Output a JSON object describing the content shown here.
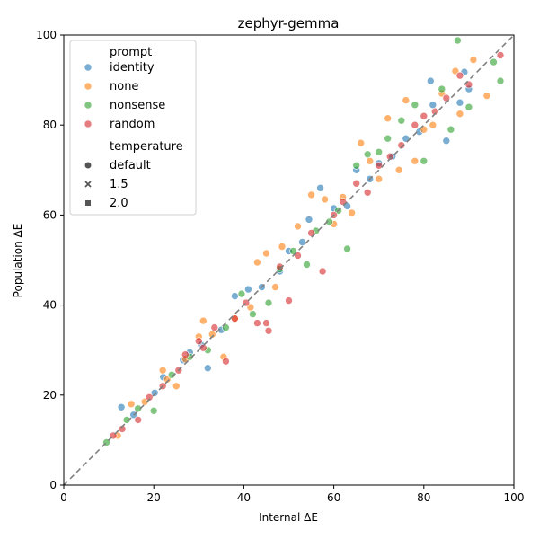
{
  "chart_data": {
    "type": "scatter",
    "title": "zephyr-gemma",
    "xlabel": "Internal ΔE",
    "ylabel": "Population ΔE",
    "xlim": [
      0,
      100
    ],
    "ylim": [
      0,
      100
    ],
    "xticks": [
      0,
      20,
      40,
      60,
      80,
      100
    ],
    "yticks": [
      0,
      20,
      40,
      60,
      80,
      100
    ],
    "grid": false,
    "reference_line": {
      "style": "dashed",
      "color": "#808080",
      "from": [
        0,
        0
      ],
      "to": [
        100,
        100
      ]
    },
    "legend": {
      "placement": "top-left",
      "hue_title": "prompt",
      "hue_entries": [
        {
          "label": "identity",
          "color": "#1f77b4"
        },
        {
          "label": "none",
          "color": "#ff7f0e"
        },
        {
          "label": "nonsense",
          "color": "#2ca02c"
        },
        {
          "label": "random",
          "color": "#d62728"
        }
      ],
      "style_title": "temperature",
      "style_entries": [
        {
          "label": "default",
          "marker": "circle"
        },
        {
          "label": "1.5",
          "marker": "x"
        },
        {
          "label": "2.0",
          "marker": "square"
        }
      ]
    },
    "series": [
      {
        "name": "identity",
        "color": "#1f77b4",
        "points": [
          [
            12.8,
            17.3
          ],
          [
            15.5,
            15.6
          ],
          [
            20.2,
            20.5
          ],
          [
            22.1,
            24.0
          ],
          [
            26.5,
            27.8
          ],
          [
            28.0,
            29.5
          ],
          [
            30.5,
            31.2
          ],
          [
            32.0,
            26.0
          ],
          [
            35.0,
            34.5
          ],
          [
            38.0,
            42.0
          ],
          [
            41.0,
            43.5
          ],
          [
            44.0,
            44.0
          ],
          [
            48.0,
            47.5
          ],
          [
            50.0,
            52.0
          ],
          [
            53.0,
            54.0
          ],
          [
            54.5,
            59.0
          ],
          [
            57.0,
            66.0
          ],
          [
            60.0,
            61.5
          ],
          [
            63.0,
            62.0
          ],
          [
            65.0,
            70.0
          ],
          [
            68.0,
            68.0
          ],
          [
            70.0,
            71.5
          ],
          [
            73.0,
            73.0
          ],
          [
            76.0,
            77.0
          ],
          [
            79.0,
            78.5
          ],
          [
            81.5,
            89.8
          ],
          [
            82.0,
            84.5
          ],
          [
            85.0,
            76.5
          ],
          [
            88.0,
            85.0
          ],
          [
            89.0,
            91.8
          ],
          [
            90.0,
            88.0
          ]
        ]
      },
      {
        "name": "none",
        "color": "#ff7f0e",
        "points": [
          [
            12.0,
            11.0
          ],
          [
            15.0,
            18.0
          ],
          [
            18.0,
            18.5
          ],
          [
            22.0,
            25.5
          ],
          [
            23.0,
            23.5
          ],
          [
            25.0,
            22.0
          ],
          [
            27.0,
            28.0
          ],
          [
            30.0,
            33.0
          ],
          [
            31.0,
            36.5
          ],
          [
            33.0,
            33.5
          ],
          [
            35.5,
            28.5
          ],
          [
            38.0,
            37.0
          ],
          [
            41.5,
            39.5
          ],
          [
            43.0,
            49.5
          ],
          [
            45.0,
            51.5
          ],
          [
            47.0,
            44.0
          ],
          [
            48.5,
            53.0
          ],
          [
            52.0,
            57.5
          ],
          [
            55.0,
            64.5
          ],
          [
            58.0,
            63.5
          ],
          [
            60.0,
            58.0
          ],
          [
            62.0,
            64.0
          ],
          [
            64.0,
            60.5
          ],
          [
            66.0,
            76.0
          ],
          [
            68.0,
            72.0
          ],
          [
            70.0,
            68.0
          ],
          [
            72.0,
            81.5
          ],
          [
            74.5,
            70.0
          ],
          [
            76.0,
            85.5
          ],
          [
            78.0,
            72.0
          ],
          [
            80.0,
            79.0
          ],
          [
            82.0,
            80.0
          ],
          [
            84.0,
            87.0
          ],
          [
            87.0,
            92.0
          ],
          [
            88.0,
            82.5
          ],
          [
            91.0,
            94.5
          ],
          [
            94.0,
            86.5
          ]
        ]
      },
      {
        "name": "nonsense",
        "color": "#2ca02c",
        "points": [
          [
            9.5,
            9.5
          ],
          [
            14.0,
            14.5
          ],
          [
            16.5,
            17.0
          ],
          [
            20.0,
            16.5
          ],
          [
            24.0,
            24.5
          ],
          [
            28.0,
            28.5
          ],
          [
            32.0,
            30.0
          ],
          [
            36.0,
            35.0
          ],
          [
            39.5,
            42.5
          ],
          [
            42.0,
            38.0
          ],
          [
            45.5,
            40.5
          ],
          [
            48.0,
            48.0
          ],
          [
            51.0,
            52.0
          ],
          [
            54.0,
            49.0
          ],
          [
            56.0,
            56.5
          ],
          [
            59.0,
            58.5
          ],
          [
            61.0,
            61.0
          ],
          [
            63.0,
            52.5
          ],
          [
            65.0,
            71.0
          ],
          [
            67.5,
            73.5
          ],
          [
            70.0,
            74.0
          ],
          [
            72.0,
            77.0
          ],
          [
            75.0,
            81.0
          ],
          [
            78.0,
            84.5
          ],
          [
            80.0,
            72.0
          ],
          [
            84.0,
            88.0
          ],
          [
            86.0,
            79.0
          ],
          [
            87.5,
            98.8
          ],
          [
            90.0,
            84.0
          ],
          [
            95.5,
            94.0
          ],
          [
            97.0,
            89.8
          ]
        ]
      },
      {
        "name": "random",
        "color": "#d62728",
        "points": [
          [
            11.0,
            11.0
          ],
          [
            13.0,
            12.5
          ],
          [
            16.5,
            14.5
          ],
          [
            19.0,
            19.5
          ],
          [
            22.0,
            22.0
          ],
          [
            25.5,
            25.5
          ],
          [
            27.0,
            29.0
          ],
          [
            30.0,
            32.0
          ],
          [
            31.0,
            30.5
          ],
          [
            33.5,
            35.0
          ],
          [
            36.0,
            27.5
          ],
          [
            38.0,
            37.0
          ],
          [
            40.5,
            40.5
          ],
          [
            43.0,
            36.0
          ],
          [
            45.0,
            36.0
          ],
          [
            45.5,
            34.3
          ],
          [
            48.0,
            48.5
          ],
          [
            50.0,
            41.0
          ],
          [
            52.0,
            51.0
          ],
          [
            55.0,
            56.0
          ],
          [
            57.5,
            47.5
          ],
          [
            60.0,
            60.0
          ],
          [
            62.0,
            63.0
          ],
          [
            65.0,
            67.0
          ],
          [
            67.5,
            65.0
          ],
          [
            70.0,
            71.0
          ],
          [
            72.5,
            73.0
          ],
          [
            75.0,
            75.5
          ],
          [
            78.0,
            80.0
          ],
          [
            80.0,
            82.0
          ],
          [
            82.5,
            83.0
          ],
          [
            85.0,
            86.0
          ],
          [
            88.0,
            91.0
          ],
          [
            90.0,
            89.0
          ],
          [
            97.0,
            95.5
          ]
        ]
      }
    ]
  }
}
